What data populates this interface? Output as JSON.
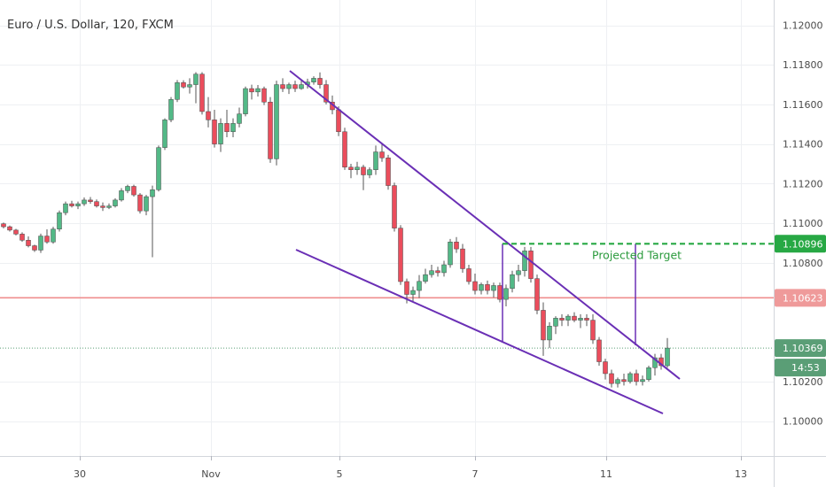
{
  "symbol": {
    "title": "Euro / U.S. Dollar, 120, FXCM"
  },
  "chart_data": {
    "type": "candlestick",
    "title": "Euro / U.S. Dollar, 120, FXCM",
    "x_ticks": [
      "30",
      "Nov",
      "5",
      "7",
      "11",
      "13"
    ],
    "y_ticks": [
      1.12,
      1.118,
      1.116,
      1.114,
      1.112,
      1.11,
      1.108,
      1.102,
      1.1
    ],
    "y_tick_labels": [
      "1.12000",
      "1.11800",
      "1.11600",
      "1.11400",
      "1.11200",
      "1.11000",
      "1.10800",
      "1.10200",
      "1.10000"
    ],
    "ylim": [
      1.0986,
      1.1212
    ],
    "price_labels": [
      {
        "name": "projected_target",
        "value": 1.10896,
        "label": "1.10896",
        "color": "#27a844"
      },
      {
        "name": "horizontal_level",
        "value": 1.10623,
        "label": "1.10623",
        "color": "#ef9a9a"
      },
      {
        "name": "last_price",
        "value": 1.10369,
        "label": "1.10369",
        "color": "#5a9e76"
      }
    ],
    "countdown": "14:53",
    "annotations": [
      {
        "text": "Projected Target",
        "color": "#2a9a3c"
      }
    ],
    "colors": {
      "up": "#53b987",
      "down": "#eb4d5c",
      "wick": "#555555",
      "pattern": "#6a2fb5",
      "target": "#27a844",
      "level": "#ef8e8e",
      "last": "#5a9e76"
    },
    "candles": [
      [
        1.10997,
        1.11003,
        1.10974,
        1.10982
      ],
      [
        1.10982,
        1.10988,
        1.10958,
        1.10965
      ],
      [
        1.10965,
        1.10971,
        1.10938,
        1.10945
      ],
      [
        1.10945,
        1.10954,
        1.10906,
        1.10914
      ],
      [
        1.10914,
        1.10933,
        1.10878,
        1.10886
      ],
      [
        1.10886,
        1.10891,
        1.10855,
        1.10864
      ],
      [
        1.10864,
        1.10947,
        1.1085,
        1.10935
      ],
      [
        1.10935,
        1.10969,
        1.10896,
        1.10905
      ],
      [
        1.10905,
        1.10982,
        1.10896,
        1.1097
      ],
      [
        1.1097,
        1.11064,
        1.10958,
        1.11053
      ],
      [
        1.11053,
        1.11109,
        1.1104,
        1.11098
      ],
      [
        1.11098,
        1.11113,
        1.11079,
        1.11087
      ],
      [
        1.11087,
        1.11109,
        1.11071,
        1.11098
      ],
      [
        1.11098,
        1.1113,
        1.11087,
        1.11117
      ],
      [
        1.11117,
        1.11132,
        1.11098,
        1.11109
      ],
      [
        1.11109,
        1.1112,
        1.11079,
        1.11087
      ],
      [
        1.11087,
        1.11105,
        1.11062,
        1.11079
      ],
      [
        1.11079,
        1.111,
        1.11071,
        1.11087
      ],
      [
        1.11087,
        1.11126,
        1.11079,
        1.11117
      ],
      [
        1.11117,
        1.11177,
        1.11109,
        1.11164
      ],
      [
        1.11164,
        1.11194,
        1.11152,
        1.11186
      ],
      [
        1.11186,
        1.11194,
        1.11134,
        1.11143
      ],
      [
        1.11143,
        1.11152,
        1.11049,
        1.11062
      ],
      [
        1.11062,
        1.11143,
        1.1104,
        1.11134
      ],
      [
        1.11134,
        1.1119,
        1.10828,
        1.11169
      ],
      [
        1.11169,
        1.11392,
        1.1116,
        1.11382
      ],
      [
        1.11382,
        1.1153,
        1.1137,
        1.11522
      ],
      [
        1.11522,
        1.11637,
        1.1151,
        1.11625
      ],
      [
        1.11625,
        1.11723,
        1.11612,
        1.1171
      ],
      [
        1.1171,
        1.11722,
        1.1168,
        1.11688
      ],
      [
        1.11688,
        1.11732,
        1.11655,
        1.117
      ],
      [
        1.117,
        1.11763,
        1.11606,
        1.11753
      ],
      [
        1.11753,
        1.11763,
        1.11549,
        1.11564
      ],
      [
        1.11564,
        1.11637,
        1.11484,
        1.11522
      ],
      [
        1.11522,
        1.11573,
        1.11382,
        1.114
      ],
      [
        1.114,
        1.1153,
        1.1136,
        1.11504
      ],
      [
        1.11504,
        1.11573,
        1.11434,
        1.11462
      ],
      [
        1.11462,
        1.1153,
        1.11434,
        1.11504
      ],
      [
        1.11504,
        1.11584,
        1.11484,
        1.11552
      ],
      [
        1.11552,
        1.1169,
        1.1154,
        1.1168
      ],
      [
        1.1168,
        1.117,
        1.11625,
        1.11663
      ],
      [
        1.11663,
        1.11698,
        1.1164,
        1.1168
      ],
      [
        1.1168,
        1.1169,
        1.11597,
        1.11612
      ],
      [
        1.11612,
        1.11637,
        1.11305,
        1.11325
      ],
      [
        1.11325,
        1.1172,
        1.11292,
        1.117
      ],
      [
        1.117,
        1.11732,
        1.11663,
        1.1168
      ],
      [
        1.1168,
        1.1171,
        1.11653,
        1.117
      ],
      [
        1.117,
        1.1172,
        1.11663,
        1.1168
      ],
      [
        1.1168,
        1.11723,
        1.11674,
        1.117
      ],
      [
        1.117,
        1.1173,
        1.1168,
        1.11713
      ],
      [
        1.11713,
        1.11742,
        1.117,
        1.11732
      ],
      [
        1.11732,
        1.11762,
        1.1168,
        1.117
      ],
      [
        1.117,
        1.11723,
        1.116,
        1.11612
      ],
      [
        1.11612,
        1.11645,
        1.1155,
        1.11573
      ],
      [
        1.11573,
        1.1159,
        1.1144,
        1.11462
      ],
      [
        1.11462,
        1.11482,
        1.11269,
        1.11283
      ],
      [
        1.11283,
        1.113,
        1.11227,
        1.1127
      ],
      [
        1.1127,
        1.1131,
        1.11244,
        1.11283
      ],
      [
        1.11283,
        1.11295,
        1.11167,
        1.11244
      ],
      [
        1.11244,
        1.11282,
        1.11227,
        1.1127
      ],
      [
        1.1127,
        1.11392,
        1.11244,
        1.1136
      ],
      [
        1.1136,
        1.114,
        1.1131,
        1.1133
      ],
      [
        1.1133,
        1.11345,
        1.11169,
        1.1119
      ],
      [
        1.1119,
        1.11205,
        1.10958,
        1.10975
      ],
      [
        1.10975,
        1.1099,
        1.10688,
        1.10705
      ],
      [
        1.10705,
        1.1072,
        1.10595,
        1.1064
      ],
      [
        1.1064,
        1.1068,
        1.106,
        1.1066
      ],
      [
        1.1066,
        1.10738,
        1.10622,
        1.10706
      ],
      [
        1.10706,
        1.1077,
        1.10695,
        1.1074
      ],
      [
        1.1074,
        1.1079,
        1.10725,
        1.1076
      ],
      [
        1.1076,
        1.1078,
        1.1073,
        1.1075
      ],
      [
        1.1075,
        1.1081,
        1.1073,
        1.1079
      ],
      [
        1.1079,
        1.1092,
        1.10775,
        1.10905
      ],
      [
        1.10905,
        1.1093,
        1.1085,
        1.1087
      ],
      [
        1.1087,
        1.10895,
        1.1075,
        1.1077
      ],
      [
        1.1077,
        1.1079,
        1.1069,
        1.10705
      ],
      [
        1.10705,
        1.10745,
        1.1064,
        1.1066
      ],
      [
        1.1066,
        1.107,
        1.1064,
        1.1069
      ],
      [
        1.1069,
        1.1071,
        1.1064,
        1.1066
      ],
      [
        1.1066,
        1.107,
        1.10625,
        1.10685
      ],
      [
        1.10685,
        1.107,
        1.106,
        1.10615
      ],
      [
        1.10615,
        1.1069,
        1.1058,
        1.1067
      ],
      [
        1.1067,
        1.1076,
        1.1065,
        1.1074
      ],
      [
        1.1074,
        1.1079,
        1.10705,
        1.1076
      ],
      [
        1.1076,
        1.1088,
        1.1073,
        1.1086
      ],
      [
        1.1086,
        1.1088,
        1.107,
        1.1072
      ],
      [
        1.1072,
        1.1074,
        1.1054,
        1.1056
      ],
      [
        1.1056,
        1.106,
        1.1033,
        1.1041
      ],
      [
        1.1041,
        1.105,
        1.1037,
        1.1048
      ],
      [
        1.1048,
        1.1053,
        1.1044,
        1.1052
      ],
      [
        1.1052,
        1.1054,
        1.1048,
        1.1051
      ],
      [
        1.1051,
        1.1054,
        1.1048,
        1.1053
      ],
      [
        1.1053,
        1.1055,
        1.105,
        1.1051
      ],
      [
        1.1051,
        1.1054,
        1.1047,
        1.1052
      ],
      [
        1.1052,
        1.1054,
        1.1048,
        1.1051
      ],
      [
        1.1051,
        1.1054,
        1.1039,
        1.1041
      ],
      [
        1.1041,
        1.10425,
        1.1028,
        1.103
      ],
      [
        1.103,
        1.10315,
        1.1021,
        1.1024
      ],
      [
        1.1024,
        1.1026,
        1.1017,
        1.1019
      ],
      [
        1.1019,
        1.1022,
        1.1017,
        1.1021
      ],
      [
        1.1021,
        1.1024,
        1.1018,
        1.102
      ],
      [
        1.102,
        1.1025,
        1.1019,
        1.1024
      ],
      [
        1.1024,
        1.1026,
        1.1018,
        1.102
      ],
      [
        1.102,
        1.1023,
        1.1018,
        1.1021
      ],
      [
        1.1021,
        1.1028,
        1.102,
        1.1027
      ],
      [
        1.1027,
        1.1034,
        1.1023,
        1.1032
      ],
      [
        1.1032,
        1.1034,
        1.1026,
        1.1028
      ],
      [
        1.1028,
        1.1042,
        1.1027,
        1.10369
      ]
    ]
  }
}
